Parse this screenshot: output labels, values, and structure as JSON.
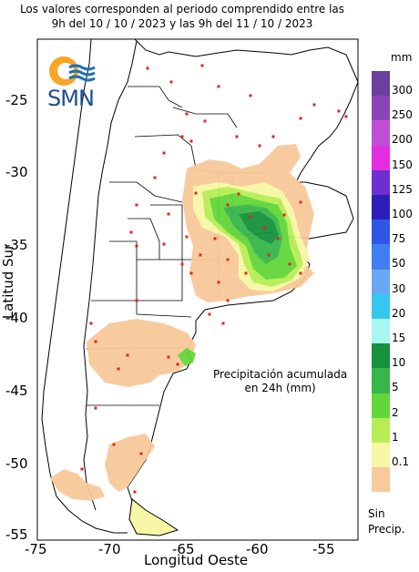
{
  "header": {
    "line1": "Los valores corresponden al periodo comprendido entre las",
    "line2": "9h del 10 / 10 / 2023  y las 9h del 11 / 10 / 2023"
  },
  "logo": {
    "text": "SMN",
    "icon": "smn-logo-icon"
  },
  "axes": {
    "xlabel": "Longitud Oeste",
    "ylabel": "Latitud Sur",
    "xticks": [
      "-75",
      "-70",
      "-65",
      "-60",
      "-55"
    ],
    "yticks": [
      "-25",
      "-30",
      "-35",
      "-40",
      "-45",
      "-50",
      "-55"
    ]
  },
  "annotation": {
    "line1": "Precipitación acumulada",
    "line2": "en 24h (mm)"
  },
  "legend": {
    "units": "mm",
    "items": [
      {
        "label": "300",
        "color": "#6b3fa0"
      },
      {
        "label": "250",
        "color": "#8a45b8"
      },
      {
        "label": "200",
        "color": "#c04fd6"
      },
      {
        "label": "150",
        "color": "#e22ee0"
      },
      {
        "label": "125",
        "color": "#6f2fd0"
      },
      {
        "label": "100",
        "color": "#2a1fb8"
      },
      {
        "label": "75",
        "color": "#2f56e6"
      },
      {
        "label": "50",
        "color": "#3f7ff0"
      },
      {
        "label": "30",
        "color": "#6aa6f4"
      },
      {
        "label": "20",
        "color": "#34c8f0"
      },
      {
        "label": "15",
        "color": "#a8f7f0"
      },
      {
        "label": "10",
        "color": "#16913c"
      },
      {
        "label": "5",
        "color": "#37b64a"
      },
      {
        "label": "2",
        "color": "#62d63a"
      },
      {
        "label": "1",
        "color": "#b8ee55"
      },
      {
        "label": "0.1",
        "color": "#f7f7a6"
      },
      {
        "label": "",
        "color": "#f8c99a"
      }
    ],
    "no_precip": [
      "Sin",
      "Precip."
    ]
  },
  "colors": {
    "land_dry": "#ffffff",
    "frame": "#000000",
    "station": "#e1261c",
    "sea": "#ffffff"
  }
}
